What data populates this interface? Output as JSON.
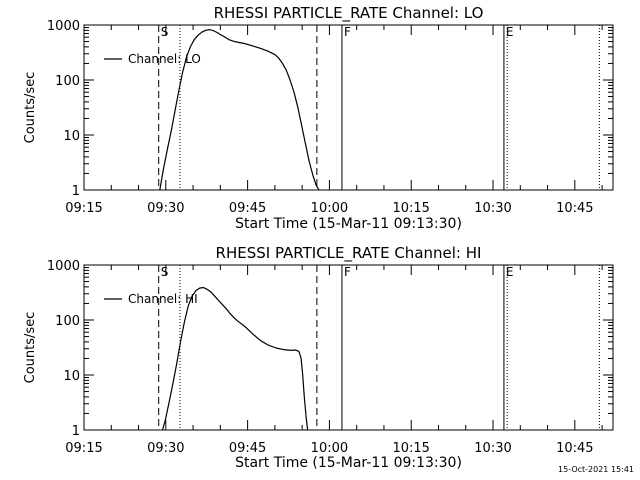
{
  "footer_timestamp": "15-Oct-2021 15:41",
  "chart_data": [
    {
      "type": "line",
      "title": "RHESSI PARTICLE_RATE Channel: LO",
      "xlabel": "Start Time (15-Mar-11 09:13:30)",
      "ylabel": "Counts/sec",
      "yscale": "log",
      "ylim": [
        1,
        1000
      ],
      "xlim_minutes_after_0915": [
        0,
        97
      ],
      "x_tick_labels": [
        "09:15",
        "09:30",
        "09:45",
        "10:00",
        "10:15",
        "10:30",
        "10:45"
      ],
      "x_tick_minutes": [
        0,
        15,
        30,
        45,
        60,
        75,
        90
      ],
      "y_tick_labels": [
        "1",
        "10",
        "100",
        "1000"
      ],
      "y_tick_values": [
        1,
        10,
        100,
        1000
      ],
      "legend": [
        "Channel: LO"
      ],
      "legend_position": "top-left",
      "markers": [
        {
          "label": "S",
          "minute": 13.7,
          "style": "dashed"
        },
        {
          "label": "",
          "minute": 17.6,
          "style": "dotted"
        },
        {
          "label": "",
          "minute": 42.7,
          "style": "dashed"
        },
        {
          "label": "F",
          "minute": 47.3,
          "style": "solid"
        },
        {
          "label": "E",
          "minute": 77.0,
          "style": "solid"
        },
        {
          "label": "",
          "minute": 77.6,
          "style": "dotted"
        },
        {
          "label": "",
          "minute": 94.5,
          "style": "dotted"
        }
      ],
      "series": [
        {
          "name": "Channel: LO",
          "x_minutes": [
            13.9,
            14.6,
            15.3,
            16.0,
            16.7,
            17.4,
            18.1,
            18.8,
            19.5,
            20.2,
            20.9,
            21.6,
            22.3,
            23.0,
            23.7,
            24.4,
            25.1,
            25.9,
            26.6,
            27.3,
            28.0,
            29.4,
            30.8,
            32.2,
            33.6,
            35.0,
            35.7,
            36.4,
            37.1,
            37.8,
            38.5,
            39.2,
            39.9,
            40.6,
            41.3,
            42.0,
            42.6,
            43.1
          ],
          "values": [
            1,
            2.5,
            5.5,
            12,
            28,
            65,
            140,
            260,
            400,
            540,
            650,
            740,
            800,
            820,
            790,
            730,
            660,
            600,
            540,
            510,
            490,
            460,
            420,
            380,
            340,
            290,
            250,
            200,
            150,
            100,
            60,
            32,
            15,
            7,
            3.3,
            1.8,
            1.2,
            1
          ]
        }
      ]
    },
    {
      "type": "line",
      "title": "RHESSI PARTICLE_RATE Channel: HI",
      "xlabel": "Start Time (15-Mar-11 09:13:30)",
      "ylabel": "Counts/sec",
      "yscale": "log",
      "ylim": [
        1,
        1000
      ],
      "xlim_minutes_after_0915": [
        0,
        97
      ],
      "x_tick_labels": [
        "09:15",
        "09:30",
        "09:45",
        "10:00",
        "10:15",
        "10:30",
        "10:45"
      ],
      "x_tick_minutes": [
        0,
        15,
        30,
        45,
        60,
        75,
        90
      ],
      "y_tick_labels": [
        "1",
        "10",
        "100",
        "1000"
      ],
      "y_tick_values": [
        1,
        10,
        100,
        1000
      ],
      "legend": [
        "Channel: HI"
      ],
      "legend_position": "top-left",
      "markers": [
        {
          "label": "S",
          "minute": 13.7,
          "style": "dashed"
        },
        {
          "label": "",
          "minute": 17.6,
          "style": "dotted"
        },
        {
          "label": "",
          "minute": 42.7,
          "style": "dashed"
        },
        {
          "label": "F",
          "minute": 47.3,
          "style": "solid"
        },
        {
          "label": "E",
          "minute": 77.0,
          "style": "solid"
        },
        {
          "label": "",
          "minute": 77.6,
          "style": "dotted"
        },
        {
          "label": "",
          "minute": 94.5,
          "style": "dotted"
        }
      ],
      "series": [
        {
          "name": "Channel: HI",
          "x_minutes": [
            14.4,
            14.9,
            15.6,
            16.3,
            17.0,
            17.7,
            18.4,
            19.1,
            19.8,
            20.5,
            21.2,
            21.9,
            22.6,
            23.3,
            24.0,
            24.7,
            25.4,
            26.1,
            26.8,
            27.5,
            28.2,
            29.6,
            31.0,
            32.4,
            33.8,
            35.2,
            36.6,
            38.0,
            38.7,
            39.4,
            39.8,
            40.1,
            40.4,
            40.7,
            41.0
          ],
          "values": [
            1,
            1.5,
            3.2,
            7,
            16,
            40,
            90,
            180,
            270,
            340,
            380,
            390,
            360,
            320,
            270,
            225,
            190,
            160,
            130,
            110,
            95,
            75,
            55,
            42,
            35,
            31,
            29,
            28,
            28.5,
            27,
            20,
            10,
            4,
            1.8,
            1
          ]
        }
      ]
    }
  ]
}
